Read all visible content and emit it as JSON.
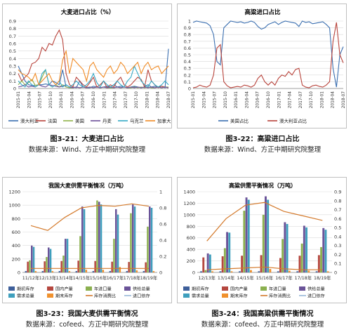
{
  "colors": {
    "australia": "#3b6fb0",
    "france": "#b8433b",
    "usa": "#8fb24a",
    "denmark": "#6d4f9a",
    "ukraine": "#34a8c4",
    "canada": "#f08a24",
    "beg_stock": "#3e5f9a",
    "production": "#b5473f",
    "imports": "#8bb04f",
    "supply": "#6a5398",
    "demand": "#3f9fbd",
    "end_stock": "#f0912e",
    "stu": "#d47a2c",
    "export": "#97b8d9"
  },
  "captions": [
    {
      "title": "图3-21：大麦进口占比",
      "source": "数据来源：Wind、方正中期研究院整理"
    },
    {
      "title": "图3-22：高粱进口占比",
      "source": "数据来源：Wind、方正中期研究院整理"
    },
    {
      "title": "图3-23：我国大麦供需平衡情况",
      "source": "数据来源：cofeed、方正中期研究院整理"
    },
    {
      "title": "图3-24：我国高粱供需平衡情况",
      "source": "数据来源：cofeed、方正中期研究院整理"
    }
  ],
  "chart_data": [
    {
      "type": "line",
      "title": "大麦进口占比（%）",
      "ylim": [
        0,
        0.9
      ],
      "yticks": [
        "0",
        "0.1",
        "0.2",
        "0.3",
        "0.4",
        "0.5",
        "0.6",
        "0.7",
        "0.8",
        "0.9"
      ],
      "x_labels": [
        "2015-01",
        "2015-04",
        "2015-07",
        "2015-10",
        "2016-01",
        "2016-04",
        "2016-07",
        "2016-10",
        "2017-01",
        "2017-04",
        "2017-07",
        "2017-10",
        "2018-01",
        "2018-04",
        "2018-07"
      ],
      "legend": [
        "澳大利亚",
        "法国",
        "美国",
        "丹麦",
        "乌克兰",
        "加拿大"
      ],
      "series": [
        {
          "name": "澳大利亚",
          "color_key": "australia",
          "values": [
            0.3,
            0.2,
            0.1,
            0.05,
            0.04,
            0.04,
            0.05,
            0.05,
            0.06,
            0.05,
            0.1,
            0.08,
            0.05,
            0.25,
            0.02,
            0.01,
            0.02,
            0.01,
            0.1,
            0.02,
            0.01,
            0.01,
            0.03,
            0.02,
            0.01,
            0.02,
            0.03,
            0.02,
            0.05,
            0.02,
            0.03,
            0.02,
            0.01,
            0.02,
            0.03,
            0.02,
            0.01,
            0.02,
            0.05,
            0.02,
            0.03,
            0.02,
            0.03,
            0.01,
            0.53
          ]
        },
        {
          "name": "法国",
          "color_key": "france",
          "values": [
            0.2,
            0.1,
            0.15,
            0.2,
            0.33,
            0.35,
            0.4,
            0.55,
            0.5,
            0.6,
            0.58,
            0.7,
            0.78,
            0.65,
            0.2,
            0.05,
            0.02,
            0.15,
            0.1,
            0.05,
            0.02,
            0.08,
            0.15,
            0.02,
            0.05,
            0.1,
            0.01,
            0.05,
            0.02,
            0.1,
            0.15,
            0.05,
            0.02,
            0.05,
            0.1,
            0.15,
            0.12,
            0.02,
            0.25,
            0.1,
            0.05,
            0.01,
            0.03,
            0.02,
            0.01
          ]
        },
        {
          "name": "美国",
          "color_key": "usa",
          "values": [
            0.05,
            0.1,
            0.05,
            0.08,
            0.12,
            0.04,
            0.05,
            0.15,
            0.25,
            0.05,
            0.02,
            0.05,
            0.02,
            0.05,
            0.02,
            0.01,
            0.01,
            0.02,
            0.01,
            0.02,
            0.01,
            0.02,
            0.01,
            0.02,
            0.01,
            0.02,
            0.01,
            0.01,
            0.01,
            0.02,
            0.01,
            0.02,
            0.01,
            0.01,
            0.02,
            0.01,
            0.02,
            0.01,
            0.02,
            0.01,
            0.01,
            0.02,
            0.01,
            0.02,
            0.02
          ]
        },
        {
          "name": "丹麦",
          "color_key": "denmark",
          "values": [
            0.02,
            0.03,
            0.05,
            0.02,
            0.03,
            0.02,
            0.05,
            0.03,
            0.02,
            0.05,
            0.04,
            0.03,
            0.02,
            0.03,
            0.05,
            0.02,
            0.01,
            0.02,
            0.01,
            0.02,
            0.01,
            0.02,
            0.01,
            0.02,
            0.01,
            0.02,
            0.01,
            0.02,
            0.01,
            0.02,
            0.01,
            0.02,
            0.01,
            0.02,
            0.01,
            0.02,
            0.01,
            0.02,
            0.01,
            0.02,
            0.01,
            0.02,
            0.01,
            0.02,
            0.01
          ]
        },
        {
          "name": "乌克兰",
          "color_key": "ukraine",
          "values": [
            0.1,
            0.05,
            0.02,
            0.1,
            0.05,
            0.02,
            0.05,
            0.2,
            0.25,
            0.05,
            0.02,
            0.05,
            0.1,
            0.02,
            0.05,
            0.02,
            0.05,
            0.1,
            0.05,
            0.02,
            0.05,
            0.1,
            0.2,
            0.08,
            0.02,
            0.1,
            0.05,
            0.02,
            0.05,
            0.1,
            0.05,
            0.02,
            0.1,
            0.15,
            0.3,
            0.2,
            0.1,
            0.05,
            0.02,
            0.1,
            0.05,
            0.02,
            0.05,
            0.1,
            0.05
          ]
        },
        {
          "name": "加拿大",
          "color_key": "canada",
          "values": [
            0.25,
            0.2,
            0.18,
            0.15,
            0.1,
            0.2,
            0.05,
            0.1,
            0.15,
            0.2,
            0.1,
            0.05,
            0.1,
            0.38,
            0.5,
            0.2,
            0.4,
            0.35,
            0.3,
            0.25,
            0.1,
            0.3,
            0.35,
            0.25,
            0.2,
            0.15,
            0.25,
            0.3,
            0.2,
            0.25,
            0.35,
            0.3,
            0.2,
            0.25,
            0.3,
            0.35,
            0.2,
            0.3,
            0.35,
            0.25,
            0.28,
            0.3,
            0.2,
            0.25,
            0.3
          ]
        }
      ]
    },
    {
      "type": "line",
      "title": "高粱进口占比",
      "ylim": [
        0,
        1.0
      ],
      "yticks": [
        "0",
        "0.1",
        "0.2",
        "0.3",
        "0.4",
        "0.5",
        "0.6",
        "0.7",
        "0.8",
        "0.9",
        "1"
      ],
      "x_labels": [
        "2015-01",
        "2015-04",
        "2015-07",
        "2015-10",
        "2016-01",
        "2016-04",
        "2016-07",
        "2016-10",
        "2017-01",
        "2017-04",
        "2017-07",
        "2017-10",
        "2018-01",
        "2018-04",
        "2018-07"
      ],
      "legend": [
        "美国占比",
        "澳大利亚占比"
      ],
      "series": [
        {
          "name": "美国占比",
          "color_key": "australia",
          "values": [
            0.98,
            1.0,
            0.99,
            0.98,
            0.97,
            0.93,
            0.8,
            0.4,
            0.35,
            0.9,
            0.95,
            1.0,
            0.99,
            0.98,
            0.99,
            0.97,
            0.98,
            1.0,
            0.98,
            0.92,
            0.88,
            0.9,
            0.95,
            0.97,
            0.99,
            0.95,
            0.98,
            1.0,
            0.99,
            0.98,
            0.97,
            0.92,
            1.0,
            0.98,
            0.99,
            0.96,
            0.97,
            0.98,
            0.99,
            0.95,
            0.9,
            0.3,
            0.02,
            0.5,
            0.62
          ]
        },
        {
          "name": "澳大利亚占比",
          "color_key": "france",
          "values": [
            0.01,
            0.02,
            0.05,
            0.03,
            0.02,
            0.05,
            0.2,
            0.6,
            0.65,
            0.1,
            0.04,
            0.01,
            0.02,
            0.03,
            0.02,
            0.05,
            0.04,
            0.02,
            0.05,
            0.15,
            0.2,
            0.1,
            0.05,
            0.1,
            0.05,
            0.15,
            0.2,
            0.18,
            0.25,
            0.2,
            0.28,
            0.3,
            0.05,
            0.02,
            0.01,
            0.04,
            0.05,
            0.03,
            0.02,
            0.05,
            0.1,
            0.7,
            0.98,
            0.5,
            0.38
          ]
        }
      ]
    },
    {
      "type": "bar",
      "title": "我国大麦供需平衡情况（万吨）",
      "categories": [
        "11/12年",
        "12/13年",
        "13/14年",
        "14/15年",
        "15/16年",
        "16/17年",
        "17/18年",
        "18/19年"
      ],
      "ylim": [
        0,
        1200
      ],
      "yticks": [
        "0",
        "200",
        "400",
        "600",
        "800",
        "1000",
        "1200"
      ],
      "y2lim": [
        0,
        1
      ],
      "y2ticks": [
        "0",
        "0.2",
        "0.4",
        "0.6",
        "0.8",
        "1"
      ],
      "legend": [
        "期初库存",
        "国内产量",
        "年进口量",
        "供给总量",
        "需求总量",
        "期末库存",
        "库存消费比",
        "进口依存"
      ],
      "series": [
        {
          "name": "期初库存",
          "color_key": "beg_stock",
          "values": [
            20,
            20,
            20,
            20,
            20,
            20,
            20,
            20
          ]
        },
        {
          "name": "国内产量",
          "color_key": "production",
          "values": [
            160,
            165,
            170,
            175,
            170,
            160,
            155,
            150
          ]
        },
        {
          "name": "年进口量",
          "color_key": "imports",
          "values": [
            180,
            230,
            250,
            540,
            1070,
            500,
            880,
            680
          ]
        },
        {
          "name": "供给总量",
          "color_key": "supply",
          "values": [
            400,
            370,
            500,
            980,
            1050,
            940,
            1010,
            980
          ]
        },
        {
          "name": "需求总量",
          "color_key": "demand",
          "values": [
            380,
            350,
            500,
            940,
            1010,
            860,
            980,
            960
          ]
        },
        {
          "name": "期末库存",
          "color_key": "end_stock",
          "values": [
            20,
            20,
            20,
            40,
            40,
            80,
            30,
            20
          ]
        }
      ],
      "lines": [
        {
          "name": "库存消费比",
          "color_key": "stu",
          "values": [
            0.05,
            0.05,
            0.05,
            0.05,
            0.05,
            0.05,
            0.05,
            0.05
          ]
        },
        {
          "name": "进口依存",
          "color_key": "stu",
          "values": [
            0.58,
            0.52,
            0.68,
            0.8,
            0.83,
            0.82,
            0.85,
            0.82
          ]
        }
      ]
    },
    {
      "type": "bar",
      "title": "高粱供需平衡情况（万吨）",
      "categories": [
        "12/13年",
        "13/14年",
        "14/15年",
        "15/16年",
        "16/17年",
        "17/18年",
        "18/19年"
      ],
      "ylim": [
        0,
        1400
      ],
      "yticks": [
        "0",
        "200",
        "400",
        "600",
        "800",
        "1000",
        "1200",
        "1400"
      ],
      "y2lim": [
        0,
        0.9
      ],
      "y2ticks": [
        "0",
        "0.1",
        "0.2",
        "0.3",
        "0.4",
        "0.5",
        "0.6",
        "0.7",
        "0.8",
        "0.9"
      ],
      "legend": [
        "期初库存",
        "国内产量",
        "年进口量",
        "供给总量",
        "需求总量",
        "期末库存",
        "库存消费比",
        "进口依存"
      ],
      "series": [
        {
          "name": "期初库存",
          "color_key": "beg_stock",
          "values": [
            20,
            20,
            20,
            20,
            20,
            20,
            20
          ]
        },
        {
          "name": "国内产量",
          "color_key": "production",
          "values": [
            260,
            280,
            290,
            300,
            250,
            290,
            300
          ]
        },
        {
          "name": "年进口量",
          "color_key": "imports",
          "values": [
            40,
            420,
            1070,
            1000,
            580,
            500,
            440
          ]
        },
        {
          "name": "供给总量",
          "color_key": "supply",
          "values": [
            330,
            700,
            1300,
            1320,
            870,
            810,
            770
          ]
        },
        {
          "name": "需求总量",
          "color_key": "demand",
          "values": [
            310,
            690,
            1260,
            1260,
            840,
            780,
            740
          ]
        },
        {
          "name": "期末库存",
          "color_key": "end_stock",
          "values": [
            20,
            20,
            40,
            60,
            30,
            30,
            20
          ]
        }
      ],
      "lines": [
        {
          "name": "库存消费比",
          "color_key": "stu",
          "values": [
            0.03,
            0.04,
            0.05,
            0.06,
            0.04,
            0.03,
            0.03
          ]
        },
        {
          "name": "进口依存",
          "color_key": "stu",
          "values": [
            0.35,
            0.6,
            0.75,
            0.78,
            0.68,
            0.63,
            0.58
          ]
        }
      ]
    }
  ]
}
